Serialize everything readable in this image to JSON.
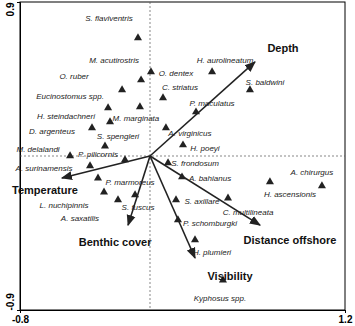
{
  "chart_data": {
    "type": "scatter",
    "marker": "triangle",
    "color": "#222222",
    "xlim": [
      -0.8,
      1.2
    ],
    "ylim": [
      -0.9,
      0.9
    ],
    "xticks": [
      -0.8,
      1.2
    ],
    "yticks": [
      -0.9,
      0.9
    ],
    "labels": [
      "S. flaviventris",
      "M. acutirostris",
      "O. ruber",
      "Eucinostomus spp.",
      "H. steindachneri",
      "D. argenteus",
      "M. marginata",
      "S. spengleri",
      "M. delalandi",
      "P. pilicornis",
      "A. surinamensis",
      "P. marmoreus",
      "L. nuchipinnis",
      "A. saxatilis",
      "S. fuscus",
      "H. aurolineatum",
      "S. baldwini",
      "O. dentex",
      "C. striatus",
      "P. maculatus",
      "A. virginicus",
      "H. poeyi",
      "S. frondosum",
      "A. bahianus",
      "A. chirurgus",
      "H. ascensionis",
      "S. axillare",
      "C. multilineata",
      "P. schomburgki",
      "H. plumieri",
      "Kyphosus spp."
    ],
    "x": [
      -0.074,
      -0.055,
      -0.172,
      -0.258,
      -0.246,
      -0.357,
      -0.062,
      -0.277,
      -0.492,
      -0.154,
      -0.369,
      -0.32,
      -0.283,
      -0.197,
      -0.092,
      0.382,
      0.615,
      0.006,
      0.08,
      0.283,
      0.098,
      0.203,
      0.111,
      0.197,
      1.058,
      0.738,
      0.16,
      0.48,
      0.172,
      0.277,
      0.449
    ],
    "values": [
      0.69,
      0.444,
      0.386,
      0.281,
      0.199,
      0.164,
      0.287,
      0.058,
      0.0,
      -0.023,
      -0.058,
      -0.129,
      -0.211,
      -0.257,
      -0.228,
      0.491,
      0.386,
      0.491,
      0.339,
      0.257,
      0.164,
      0.064,
      -0.041,
      -0.123,
      -0.175,
      -0.152,
      -0.257,
      -0.246,
      -0.374,
      -0.491,
      -0.725
    ],
    "vectors": [
      {
        "label": "Depth",
        "x": 0.646,
        "y": 0.55
      },
      {
        "label": "Temperature",
        "x": -0.542,
        "y": -0.129
      },
      {
        "label": "Benthic cover",
        "x": -0.135,
        "y": -0.404
      },
      {
        "label": "Distance offshore",
        "x": 0.677,
        "y": -0.404
      },
      {
        "label": "Visibility",
        "x": 0.277,
        "y": -0.596
      }
    ]
  }
}
